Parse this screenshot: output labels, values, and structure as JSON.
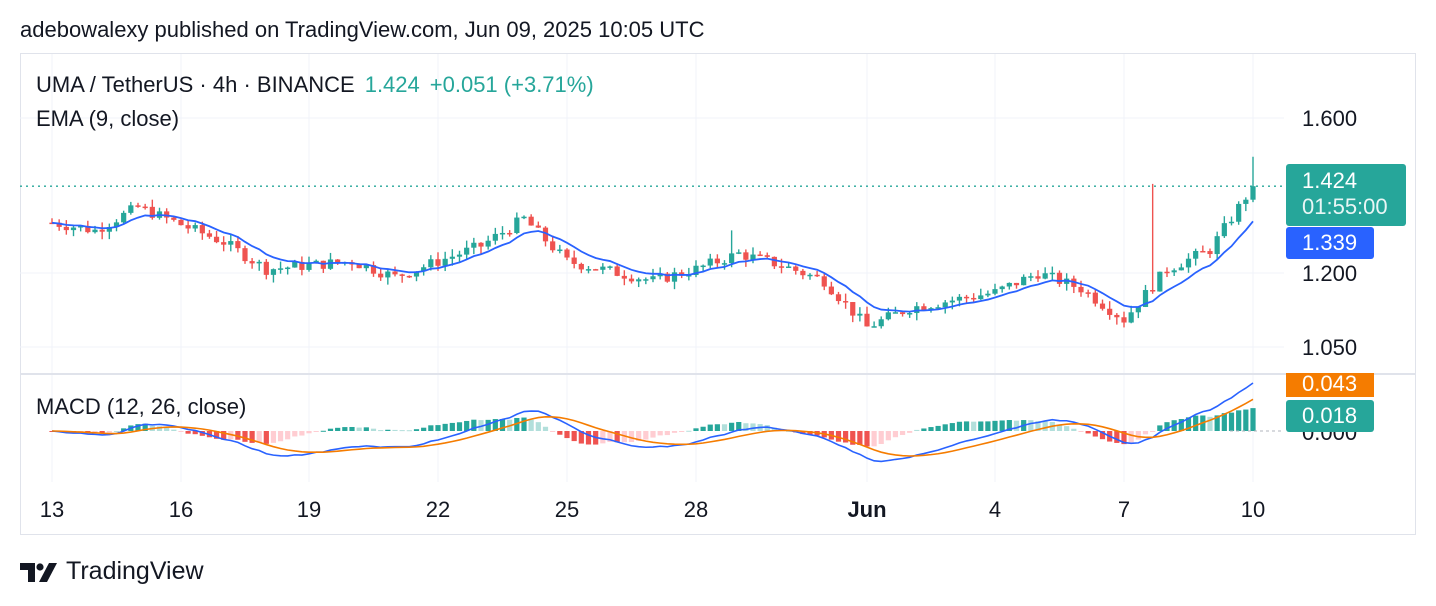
{
  "header": {
    "byline": "adebowalexy published on TradingView.com, Jun 09, 2025 10:05 UTC"
  },
  "legend": {
    "symbol": "UMA / TetherUS · 4h · BINANCE",
    "last": "1.424",
    "change": "+0.051 (+3.71%)",
    "ema": "EMA (9, close)",
    "macd": "MACD (12, 26, close)"
  },
  "tags": {
    "price": "1.424",
    "countdown": "01:55:00",
    "ema": "1.339",
    "macd_signal": "0.043",
    "macd_hist": "0.018"
  },
  "brand": {
    "name": "TradingView",
    "icon": "tradingview-logo-icon"
  },
  "colors": {
    "up": "#26a69a",
    "down": "#ef5350",
    "ema": "#2962ff",
    "signal": "#f57c00",
    "grid": "#f0f3fa"
  },
  "chart_data": [
    {
      "type": "candlestick",
      "series_name": "UMA / TetherUS",
      "x_ticks": [
        "13",
        "16",
        "19",
        "22",
        "25",
        "28",
        "Jun",
        "4",
        "7",
        "10"
      ],
      "y_ticks": [
        "1.600",
        "1.200",
        "1.050"
      ],
      "ylim": [
        1.03,
        1.62
      ],
      "key_points": [
        {
          "x": "May 12",
          "price": 1.33
        },
        {
          "x": "May 13",
          "price": 1.31
        },
        {
          "x": "May 14",
          "price": 1.37
        },
        {
          "x": "May 16",
          "price": 1.28
        },
        {
          "x": "May 17",
          "price": 1.21
        },
        {
          "x": "May 19",
          "price": 1.23
        },
        {
          "x": "May 20",
          "price": 1.19
        },
        {
          "x": "May 22",
          "price": 1.27
        },
        {
          "x": "May 23",
          "price": 1.34
        },
        {
          "x": "May 24",
          "price": 1.23
        },
        {
          "x": "May 26",
          "price": 1.18
        },
        {
          "x": "May 27",
          "price": 1.21
        },
        {
          "x": "May 28",
          "price": 1.25
        },
        {
          "x": "May 29",
          "price": 1.22
        },
        {
          "x": "May 30",
          "price": 1.18
        },
        {
          "x": "May 31",
          "price": 1.06
        },
        {
          "x": "Jun 1",
          "price": 1.11
        },
        {
          "x": "Jun 3",
          "price": 1.15
        },
        {
          "x": "Jun 4",
          "price": 1.2
        },
        {
          "x": "Jun 5",
          "price": 1.16
        },
        {
          "x": "Jun 6",
          "price": 1.08
        },
        {
          "x": "Jun 7",
          "price": 1.21
        },
        {
          "x": "Jun 8",
          "price": 1.26
        },
        {
          "x": "Jun 9",
          "price": 1.424
        }
      ],
      "last_price": 1.424,
      "ema_last": 1.339
    },
    {
      "type": "line",
      "series": [
        {
          "name": "MACD",
          "last": 0.043
        },
        {
          "name": "Signal"
        }
      ],
      "histogram_last": 0.018,
      "y_ticks": [
        "0.000"
      ]
    }
  ]
}
